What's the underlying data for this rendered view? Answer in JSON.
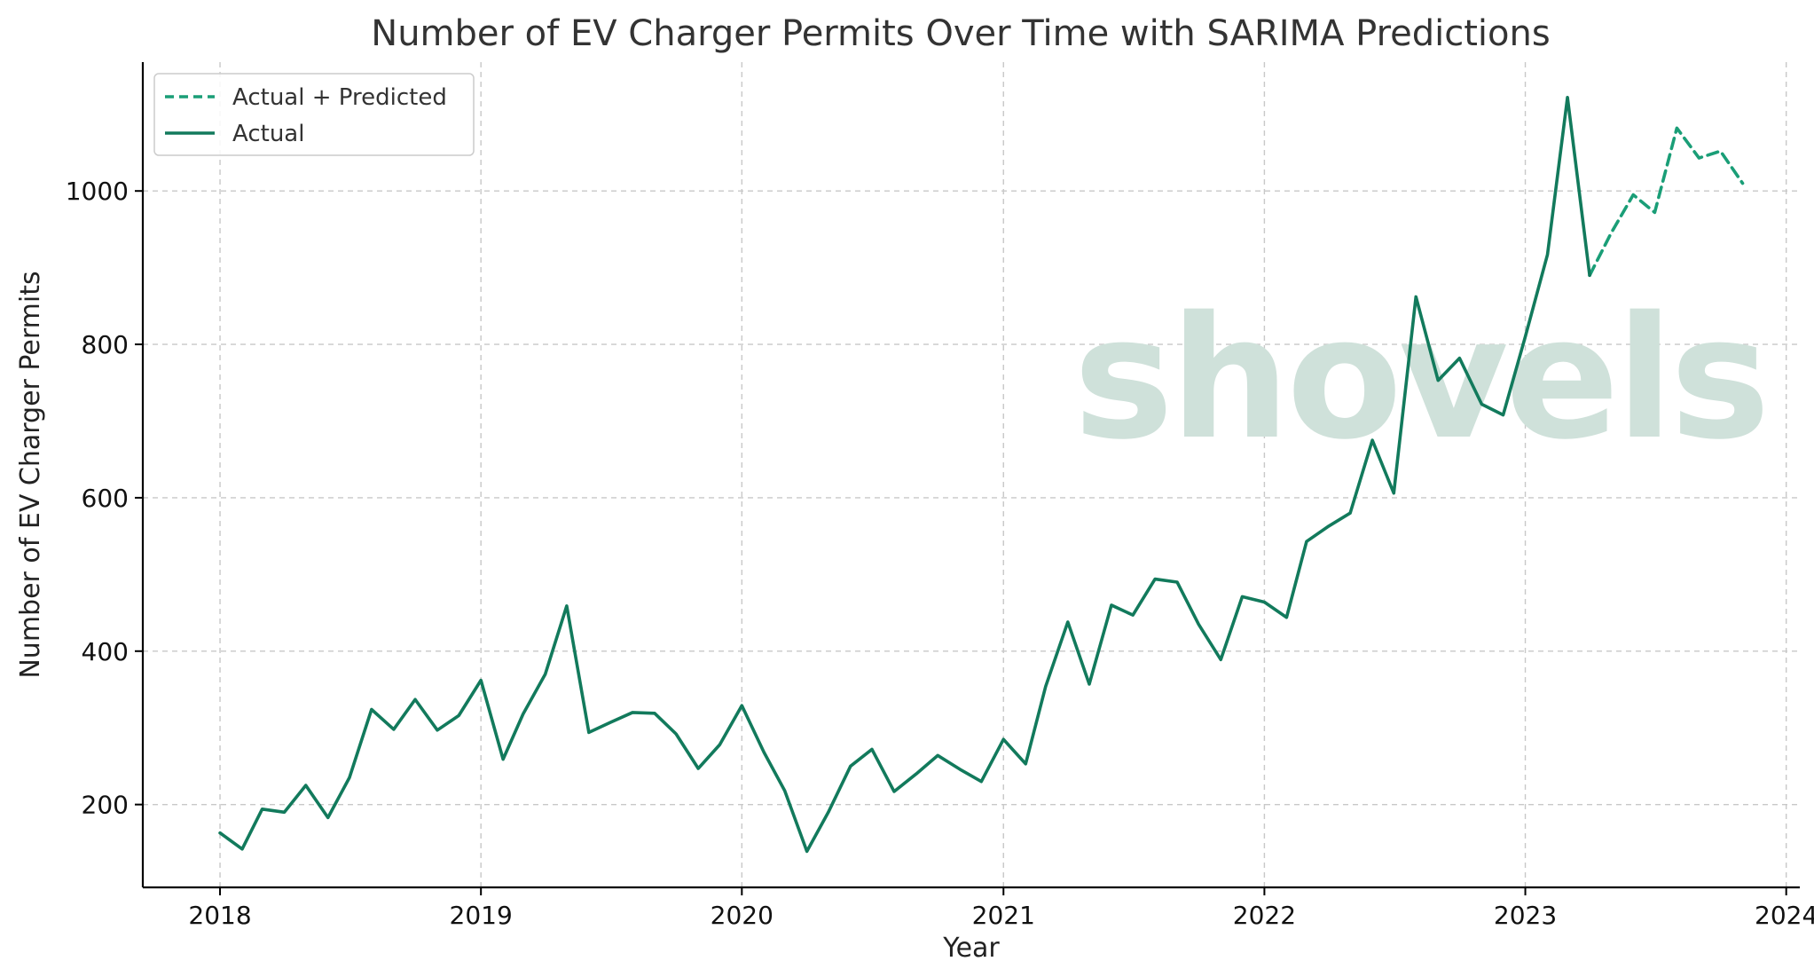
{
  "watermark": {
    "text": "shovels"
  },
  "chart_data": {
    "type": "line",
    "title": "Number of EV Charger Permits Over Time with SARIMA Predictions",
    "xlabel": "Year",
    "ylabel": "Number of EV Charger Permits",
    "xlim": [
      "2017-09-15",
      "2024-01-20"
    ],
    "ylim": [
      92,
      1168
    ],
    "x_ticks": [
      "2018",
      "2019",
      "2020",
      "2021",
      "2022",
      "2023",
      "2024"
    ],
    "y_ticks": [
      200,
      400,
      600,
      800,
      1000
    ],
    "grid": true,
    "legend": "top-left",
    "series": [
      {
        "name": "Actual + Predicted",
        "style": "dashed",
        "color": "#1a9e77",
        "x": [
          "2023-04",
          "2023-05",
          "2023-06",
          "2023-07",
          "2023-08",
          "2023-09",
          "2023-10",
          "2023-11"
        ],
        "values": [
          890,
          945,
          995,
          972,
          1082,
          1043,
          1052,
          1010
        ]
      },
      {
        "name": "Actual",
        "style": "solid",
        "color": "#127a5c",
        "x": [
          "2018-01",
          "2018-02",
          "2018-03",
          "2018-04",
          "2018-05",
          "2018-06",
          "2018-07",
          "2018-08",
          "2018-09",
          "2018-10",
          "2018-11",
          "2018-12",
          "2019-01",
          "2019-02",
          "2019-03",
          "2019-04",
          "2019-05",
          "2019-06",
          "2019-07",
          "2019-08",
          "2019-09",
          "2019-10",
          "2019-11",
          "2019-12",
          "2020-01",
          "2020-02",
          "2020-03",
          "2020-04",
          "2020-05",
          "2020-06",
          "2020-07",
          "2020-08",
          "2020-09",
          "2020-10",
          "2020-11",
          "2020-12",
          "2021-01",
          "2021-02",
          "2021-03",
          "2021-04",
          "2021-05",
          "2021-06",
          "2021-07",
          "2021-08",
          "2021-09",
          "2021-10",
          "2021-11",
          "2021-12",
          "2022-01",
          "2022-02",
          "2022-03",
          "2022-04",
          "2022-05",
          "2022-06",
          "2022-07",
          "2022-08",
          "2022-09",
          "2022-10",
          "2022-11",
          "2022-12",
          "2023-01",
          "2023-02",
          "2023-03",
          "2023-04"
        ],
        "values": [
          163,
          142,
          194,
          190,
          225,
          183,
          235,
          324,
          298,
          337,
          297,
          316,
          362,
          259,
          318,
          370,
          459,
          294,
          307,
          320,
          319,
          292,
          247,
          278,
          329,
          268,
          218,
          139,
          190,
          250,
          272,
          217,
          240,
          264,
          246,
          230,
          285,
          253,
          354,
          438,
          357,
          460,
          447,
          494,
          490,
          435,
          389,
          471,
          464,
          444,
          543,
          563,
          580,
          675,
          606,
          862,
          753,
          782,
          722,
          708,
          810,
          917,
          1122,
          890
        ]
      }
    ]
  }
}
